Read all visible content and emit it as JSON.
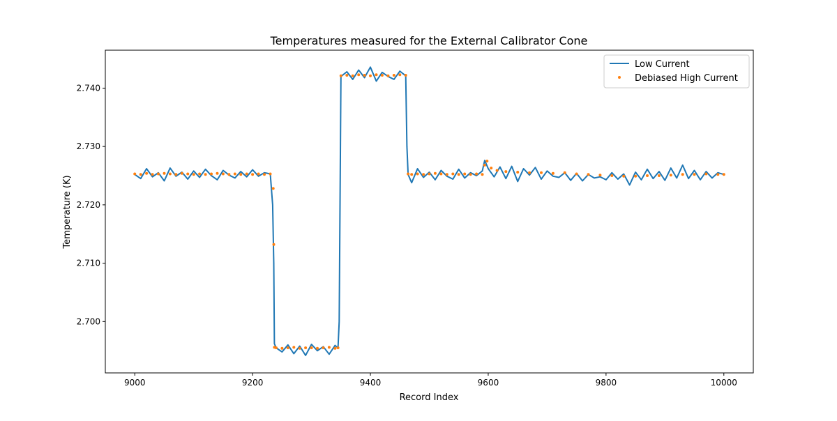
{
  "chart_data": {
    "type": "line",
    "title": "Temperatures measured for the External Calibrator Cone",
    "xlabel": "Record Index",
    "ylabel": "Temperature (K)",
    "xlim": [
      8950,
      10050
    ],
    "ylim": [
      2.6912,
      2.7465
    ],
    "xticks": [
      9000,
      9200,
      9400,
      9600,
      9800,
      10000
    ],
    "xtick_labels": [
      "9000",
      "9200",
      "9400",
      "9600",
      "9800",
      "10000"
    ],
    "yticks": [
      2.7,
      2.71,
      2.72,
      2.73,
      2.74
    ],
    "ytick_labels": [
      "2.700",
      "2.710",
      "2.720",
      "2.730",
      "2.740"
    ],
    "grid": false,
    "legend_position": "top-right",
    "series": [
      {
        "name": "Low Current",
        "style": "line",
        "color": "#1f77b4",
        "x": [
          9000,
          9010,
          9020,
          9030,
          9040,
          9050,
          9060,
          9070,
          9080,
          9090,
          9100,
          9110,
          9120,
          9130,
          9140,
          9150,
          9160,
          9170,
          9180,
          9190,
          9200,
          9210,
          9220,
          9230,
          9234,
          9236,
          9237,
          9240,
          9250,
          9260,
          9270,
          9280,
          9290,
          9300,
          9310,
          9320,
          9330,
          9340,
          9345,
          9347,
          9350,
          9360,
          9370,
          9380,
          9390,
          9400,
          9410,
          9420,
          9430,
          9440,
          9450,
          9460,
          9462,
          9464,
          9470,
          9480,
          9490,
          9500,
          9510,
          9520,
          9530,
          9540,
          9550,
          9560,
          9570,
          9580,
          9590,
          9594,
          9600,
          9610,
          9620,
          9630,
          9640,
          9650,
          9660,
          9670,
          9680,
          9690,
          9700,
          9710,
          9720,
          9730,
          9740,
          9750,
          9760,
          9770,
          9780,
          9790,
          9800,
          9810,
          9820,
          9830,
          9840,
          9850,
          9860,
          9870,
          9880,
          9890,
          9900,
          9910,
          9920,
          9930,
          9940,
          9950,
          9960,
          9970,
          9980,
          9990,
          10000
        ],
        "y": [
          2.7252,
          2.7245,
          2.7262,
          2.7248,
          2.7255,
          2.7241,
          2.7263,
          2.7249,
          2.7256,
          2.7244,
          2.7258,
          2.7247,
          2.7261,
          2.725,
          2.7243,
          2.7259,
          2.7251,
          2.7246,
          2.7257,
          2.7248,
          2.726,
          2.7249,
          2.7255,
          2.7253,
          2.72,
          2.71,
          2.6962,
          2.6955,
          2.6948,
          2.696,
          2.6945,
          2.6958,
          2.6942,
          2.6961,
          2.695,
          2.6957,
          2.6944,
          2.6959,
          2.6955,
          2.7,
          2.742,
          2.7428,
          2.7415,
          2.7431,
          2.7418,
          2.7436,
          2.7412,
          2.7427,
          2.742,
          2.7415,
          2.7429,
          2.7421,
          2.73,
          2.7252,
          2.7238,
          2.7262,
          2.7247,
          2.7256,
          2.7243,
          2.7259,
          2.7249,
          2.7244,
          2.7261,
          2.7246,
          2.7255,
          2.725,
          2.7258,
          2.7276,
          2.7262,
          2.7248,
          2.7265,
          2.7245,
          2.7266,
          2.724,
          2.7262,
          2.7251,
          2.7264,
          2.7244,
          2.7258,
          2.7249,
          2.7247,
          2.7255,
          2.7242,
          2.7254,
          2.7241,
          2.7252,
          2.7246,
          2.7248,
          2.7243,
          2.7255,
          2.7244,
          2.7253,
          2.7234,
          2.7256,
          2.7243,
          2.7261,
          2.7245,
          2.7257,
          2.7242,
          2.7263,
          2.7246,
          2.7268,
          2.7245,
          2.7259,
          2.7243,
          2.7257,
          2.7246,
          2.7255,
          2.7252
        ]
      },
      {
        "name": "Debiased High Current",
        "style": "scatter",
        "color": "#ff7f0e",
        "x": [
          9000,
          9010,
          9020,
          9030,
          9040,
          9050,
          9060,
          9070,
          9080,
          9090,
          9100,
          9110,
          9120,
          9130,
          9140,
          9150,
          9160,
          9170,
          9180,
          9190,
          9200,
          9210,
          9220,
          9230,
          9235,
          9236,
          9237,
          9240,
          9250,
          9260,
          9270,
          9280,
          9290,
          9300,
          9310,
          9320,
          9330,
          9340,
          9345,
          9350,
          9360,
          9370,
          9380,
          9390,
          9400,
          9410,
          9420,
          9430,
          9440,
          9450,
          9460,
          9464,
          9470,
          9480,
          9490,
          9500,
          9510,
          9520,
          9530,
          9540,
          9550,
          9560,
          9570,
          9580,
          9590,
          9594,
          9598,
          9605,
          9615,
          9630,
          9650,
          9670,
          9690,
          9710,
          9730,
          9750,
          9770,
          9790,
          9810,
          9830,
          9850,
          9870,
          9890,
          9910,
          9930,
          9950,
          9970,
          9990,
          10000
        ],
        "y": [
          2.7253,
          2.7252,
          2.7254,
          2.7252,
          2.7253,
          2.7254,
          2.7253,
          2.7252,
          2.7254,
          2.7253,
          2.7252,
          2.7253,
          2.7252,
          2.7253,
          2.7254,
          2.7253,
          2.7252,
          2.7253,
          2.7252,
          2.7253,
          2.7252,
          2.7253,
          2.7252,
          2.7253,
          2.7228,
          2.7132,
          2.6956,
          2.6955,
          2.6954,
          2.6955,
          2.6956,
          2.6954,
          2.6955,
          2.6955,
          2.6954,
          2.6955,
          2.6956,
          2.6954,
          2.6955,
          2.7421,
          2.7422,
          2.7421,
          2.7423,
          2.7422,
          2.7421,
          2.7423,
          2.7422,
          2.7421,
          2.7422,
          2.7423,
          2.7422,
          2.7253,
          2.7252,
          2.7253,
          2.7252,
          2.7253,
          2.7254,
          2.7253,
          2.7252,
          2.7253,
          2.7252,
          2.7253,
          2.7252,
          2.7253,
          2.7252,
          2.7268,
          2.7275,
          2.7263,
          2.7259,
          2.7257,
          2.7256,
          2.7255,
          2.7255,
          2.7254,
          2.7255,
          2.7253,
          2.7252,
          2.7251,
          2.725,
          2.7249,
          2.7249,
          2.725,
          2.725,
          2.7251,
          2.7252,
          2.7252,
          2.7253,
          2.7252,
          2.7252
        ]
      }
    ]
  }
}
